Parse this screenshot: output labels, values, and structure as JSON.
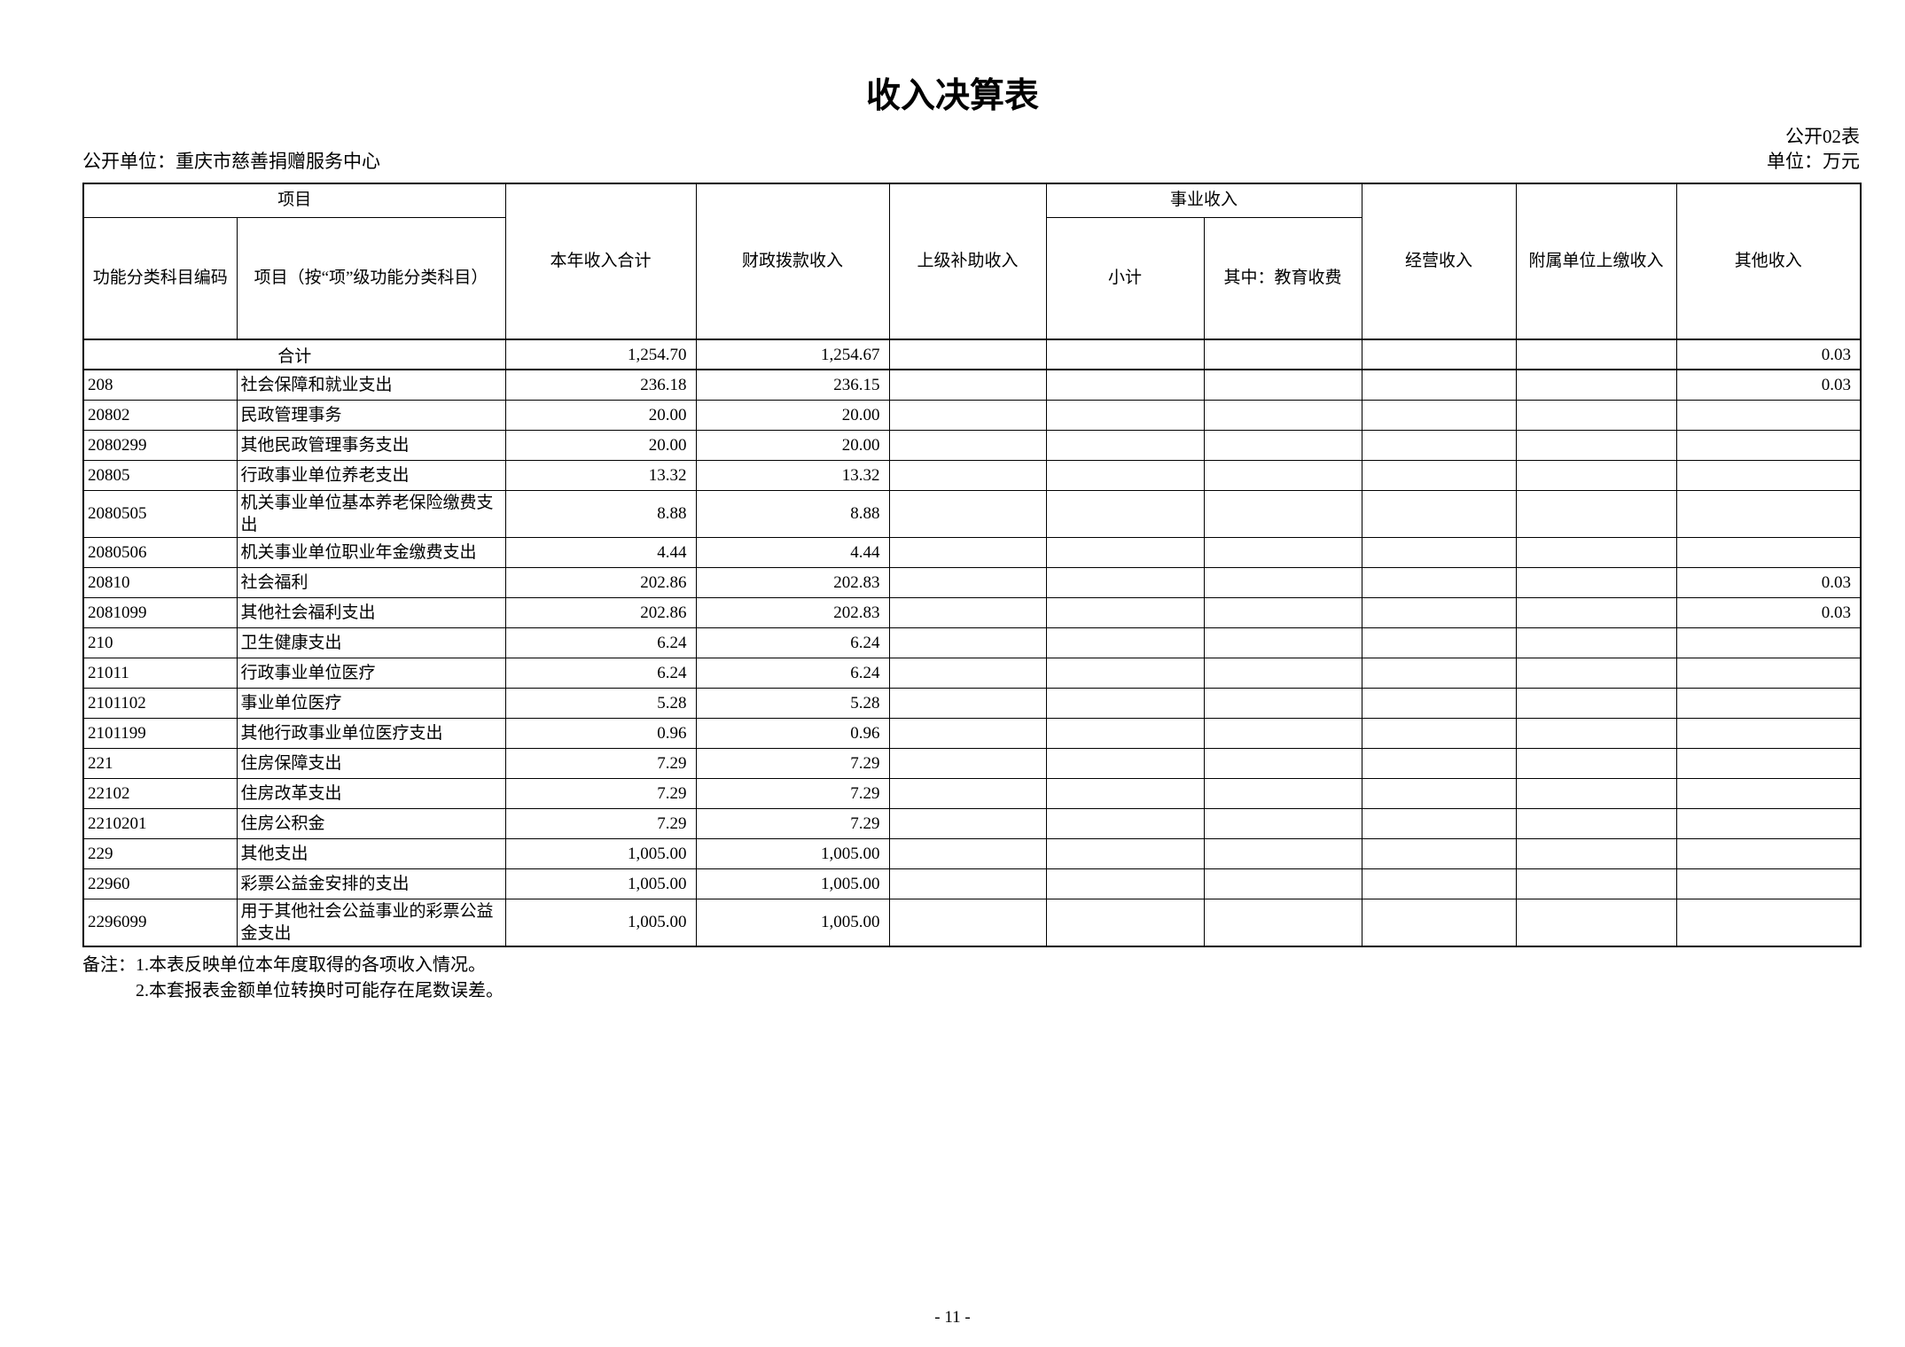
{
  "page": {
    "title": "收入决算表",
    "table_code": "公开02表",
    "unit_label": "公开单位：重庆市慈善捐赠服务中心",
    "currency_label": "单位：万元",
    "page_number": "- 11 -"
  },
  "colors": {
    "text": "#000000",
    "background": "#ffffff",
    "border": "#000000"
  },
  "table": {
    "header": {
      "project_group": "项目",
      "code": "功能分类科目编码",
      "project_item": "项目（按“项”级功能分类科目）",
      "total_income": "本年收入合计",
      "fiscal_income": "财政拨款收入",
      "superior_subsidy": "上级补助收入",
      "business_group": "事业收入",
      "business_subtotal": "小计",
      "education_fees": "其中：教育收费",
      "operating_income": "经营收入",
      "affiliated_income": "附属单位上缴收入",
      "other_income": "其他收入"
    },
    "rows": [
      {
        "merged": true,
        "code": "",
        "name": "合计",
        "total": "1,254.70",
        "fiscal": "1,254.67",
        "superior": "",
        "subtotal": "",
        "education": "",
        "operating": "",
        "affiliated": "",
        "other": "0.03"
      },
      {
        "merged": false,
        "code": "208",
        "name": "社会保障和就业支出",
        "total": "236.18",
        "fiscal": "236.15",
        "superior": "",
        "subtotal": "",
        "education": "",
        "operating": "",
        "affiliated": "",
        "other": "0.03"
      },
      {
        "merged": false,
        "code": "20802",
        "name": "民政管理事务",
        "total": "20.00",
        "fiscal": "20.00",
        "superior": "",
        "subtotal": "",
        "education": "",
        "operating": "",
        "affiliated": "",
        "other": ""
      },
      {
        "merged": false,
        "code": "2080299",
        "name": "其他民政管理事务支出",
        "total": "20.00",
        "fiscal": "20.00",
        "superior": "",
        "subtotal": "",
        "education": "",
        "operating": "",
        "affiliated": "",
        "other": ""
      },
      {
        "merged": false,
        "code": "20805",
        "name": "行政事业单位养老支出",
        "total": "13.32",
        "fiscal": "13.32",
        "superior": "",
        "subtotal": "",
        "education": "",
        "operating": "",
        "affiliated": "",
        "other": ""
      },
      {
        "merged": false,
        "code": "2080505",
        "name": "机关事业单位基本养老保险缴费支出",
        "total": "8.88",
        "fiscal": "8.88",
        "superior": "",
        "subtotal": "",
        "education": "",
        "operating": "",
        "affiliated": "",
        "other": ""
      },
      {
        "merged": false,
        "code": "2080506",
        "name": "机关事业单位职业年金缴费支出",
        "total": "4.44",
        "fiscal": "4.44",
        "superior": "",
        "subtotal": "",
        "education": "",
        "operating": "",
        "affiliated": "",
        "other": ""
      },
      {
        "merged": false,
        "code": "20810",
        "name": "社会福利",
        "total": "202.86",
        "fiscal": "202.83",
        "superior": "",
        "subtotal": "",
        "education": "",
        "operating": "",
        "affiliated": "",
        "other": "0.03"
      },
      {
        "merged": false,
        "code": "2081099",
        "name": "其他社会福利支出",
        "total": "202.86",
        "fiscal": "202.83",
        "superior": "",
        "subtotal": "",
        "education": "",
        "operating": "",
        "affiliated": "",
        "other": "0.03"
      },
      {
        "merged": false,
        "code": "210",
        "name": "卫生健康支出",
        "total": "6.24",
        "fiscal": "6.24",
        "superior": "",
        "subtotal": "",
        "education": "",
        "operating": "",
        "affiliated": "",
        "other": ""
      },
      {
        "merged": false,
        "code": "21011",
        "name": "行政事业单位医疗",
        "total": "6.24",
        "fiscal": "6.24",
        "superior": "",
        "subtotal": "",
        "education": "",
        "operating": "",
        "affiliated": "",
        "other": ""
      },
      {
        "merged": false,
        "code": "2101102",
        "name": "事业单位医疗",
        "total": "5.28",
        "fiscal": "5.28",
        "superior": "",
        "subtotal": "",
        "education": "",
        "operating": "",
        "affiliated": "",
        "other": ""
      },
      {
        "merged": false,
        "code": "2101199",
        "name": "其他行政事业单位医疗支出",
        "total": "0.96",
        "fiscal": "0.96",
        "superior": "",
        "subtotal": "",
        "education": "",
        "operating": "",
        "affiliated": "",
        "other": ""
      },
      {
        "merged": false,
        "code": "221",
        "name": "住房保障支出",
        "total": "7.29",
        "fiscal": "7.29",
        "superior": "",
        "subtotal": "",
        "education": "",
        "operating": "",
        "affiliated": "",
        "other": ""
      },
      {
        "merged": false,
        "code": "22102",
        "name": "住房改革支出",
        "total": "7.29",
        "fiscal": "7.29",
        "superior": "",
        "subtotal": "",
        "education": "",
        "operating": "",
        "affiliated": "",
        "other": ""
      },
      {
        "merged": false,
        "code": "2210201",
        "name": "住房公积金",
        "total": "7.29",
        "fiscal": "7.29",
        "superior": "",
        "subtotal": "",
        "education": "",
        "operating": "",
        "affiliated": "",
        "other": ""
      },
      {
        "merged": false,
        "code": "229",
        "name": "其他支出",
        "total": "1,005.00",
        "fiscal": "1,005.00",
        "superior": "",
        "subtotal": "",
        "education": "",
        "operating": "",
        "affiliated": "",
        "other": ""
      },
      {
        "merged": false,
        "code": "22960",
        "name": "彩票公益金安排的支出",
        "total": "1,005.00",
        "fiscal": "1,005.00",
        "superior": "",
        "subtotal": "",
        "education": "",
        "operating": "",
        "affiliated": "",
        "other": ""
      },
      {
        "merged": false,
        "code": "2296099",
        "name": "用于其他社会公益事业的彩票公益金支出",
        "total": "1,005.00",
        "fiscal": "1,005.00",
        "superior": "",
        "subtotal": "",
        "education": "",
        "operating": "",
        "affiliated": "",
        "other": ""
      }
    ]
  },
  "notes": {
    "line1": "备注：1.本表反映单位本年度取得的各项收入情况。",
    "line2": "2.本套报表金额单位转换时可能存在尾数误差。"
  }
}
